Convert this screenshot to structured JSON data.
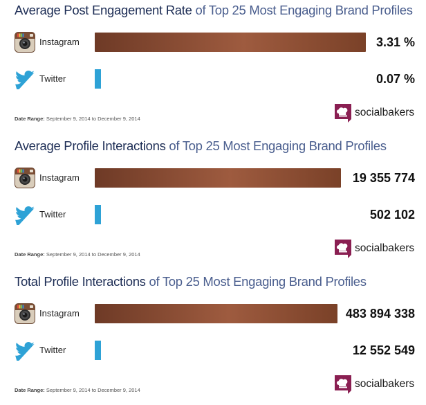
{
  "colors": {
    "title_main": "#1d2d55",
    "title_sub": "#4a5e8e",
    "instagram_bar": "#8a4a32",
    "twitter_bar": "#2ea2d6",
    "brand_logo": "#8a1f52"
  },
  "brand": {
    "name": "socialbakers",
    "icon": "chef-hat-icon"
  },
  "date_range": {
    "label": "Date Range:",
    "value": "September 9, 2014 to December 9, 2014"
  },
  "chart_data": [
    {
      "type": "bar",
      "orientation": "horizontal",
      "title_main": "Average Post Engagement Rate",
      "title_sub": "of Top 25 Most Engaging Brand Profiles",
      "categories": [
        "Instagram",
        "Twitter"
      ],
      "values": [
        3.31,
        0.07
      ],
      "value_labels": [
        "3.31 %",
        "0.07 %"
      ]
    },
    {
      "type": "bar",
      "orientation": "horizontal",
      "title_main": "Average Profile Interactions",
      "title_sub": "of Top 25 Most Engaging Brand Profiles",
      "categories": [
        "Instagram",
        "Twitter"
      ],
      "values": [
        19355774,
        502102
      ],
      "value_labels": [
        "19 355 774",
        "502 102"
      ]
    },
    {
      "type": "bar",
      "orientation": "horizontal",
      "title_main": "Total Profile Interactions",
      "title_sub": "of Top 25 Most Engaging Brand Profiles",
      "categories": [
        "Instagram",
        "Twitter"
      ],
      "values": [
        483894338,
        12552549
      ],
      "value_labels": [
        "483 894 338",
        "12 552 549"
      ]
    }
  ]
}
